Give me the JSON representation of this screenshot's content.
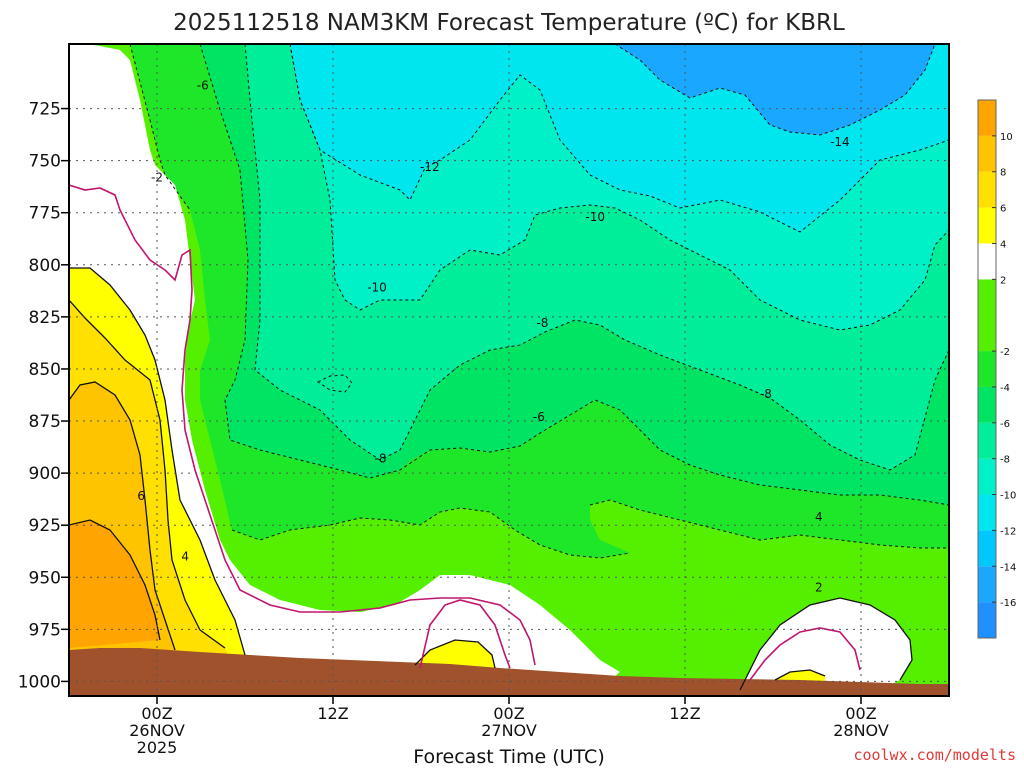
{
  "chart_data": {
    "type": "contour",
    "title": "2025112518 NAM3KM Forecast Temperature (ºC) for KBRL",
    "xlabel": "Forecast Time (UTC)",
    "ylabel": "",
    "credit": "coolwx.com/modelts",
    "x_range_hours": [
      -5,
      45
    ],
    "y_range_hPa": [
      1007,
      694
    ],
    "y_ticks": [
      725,
      750,
      775,
      800,
      825,
      850,
      875,
      900,
      925,
      950,
      975,
      1000
    ],
    "x_ticks": [
      {
        "hour": 0,
        "line1": "00Z",
        "line2": "26NOV",
        "line3": "2025"
      },
      {
        "hour": 10,
        "line1": "12Z",
        "line2": "",
        "line3": ""
      },
      {
        "hour": 20,
        "line1": "00Z",
        "line2": "27NOV",
        "line3": ""
      },
      {
        "hour": 30,
        "line1": "12Z",
        "line2": "",
        "line3": ""
      },
      {
        "hour": 40,
        "line1": "00Z",
        "line2": "28NOV",
        "line3": ""
      }
    ],
    "grid": true,
    "colorbar": {
      "placement": "right",
      "levels": [
        -18,
        -16,
        -14,
        -12,
        -10,
        -8,
        -6,
        -4,
        -2,
        2,
        4,
        6,
        8,
        10,
        12
      ],
      "tick_labels": [
        "-16",
        "-14",
        "-12",
        "-10",
        "-8",
        "-6",
        "-4",
        "-2",
        "2",
        "4",
        "6",
        "8",
        "10"
      ],
      "tick_values": [
        -16,
        -14,
        -12,
        -10,
        -8,
        -6,
        -4,
        -2,
        2,
        4,
        6,
        8,
        10
      ],
      "colors": [
        "#1e90ff",
        "#1aa7ff",
        "#00c8ff",
        "#00e6ee",
        "#00f0c8",
        "#00ee9a",
        "#00e464",
        "#1ee628",
        "#55ef00",
        "#ffffff",
        "#ffff00",
        "#ffe000",
        "#ffc400",
        "#ffa400",
        "#ff8c00"
      ]
    },
    "contour_labels": [
      {
        "text": "-6",
        "hour": 2.6,
        "p": 714
      },
      {
        "text": "-2",
        "hour": 0.0,
        "p": 758
      },
      {
        "text": "-12",
        "hour": 15.5,
        "p": 753
      },
      {
        "text": "-14",
        "hour": 38.8,
        "p": 741
      },
      {
        "text": "-10",
        "hour": 24.9,
        "p": 777
      },
      {
        "text": "-10",
        "hour": 12.5,
        "p": 811
      },
      {
        "text": "-8",
        "hour": 21.9,
        "p": 828
      },
      {
        "text": "-8",
        "hour": 34.6,
        "p": 862
      },
      {
        "text": "-6",
        "hour": 21.7,
        "p": 873
      },
      {
        "text": "-8",
        "hour": 12.7,
        "p": 893
      },
      {
        "text": "6",
        "hour": -0.9,
        "p": 911
      },
      {
        "text": "4",
        "hour": 1.6,
        "p": 940
      },
      {
        "text": "4",
        "hour": 37.6,
        "p": 921
      },
      {
        "text": "2",
        "hour": 37.6,
        "p": 955
      }
    ]
  }
}
